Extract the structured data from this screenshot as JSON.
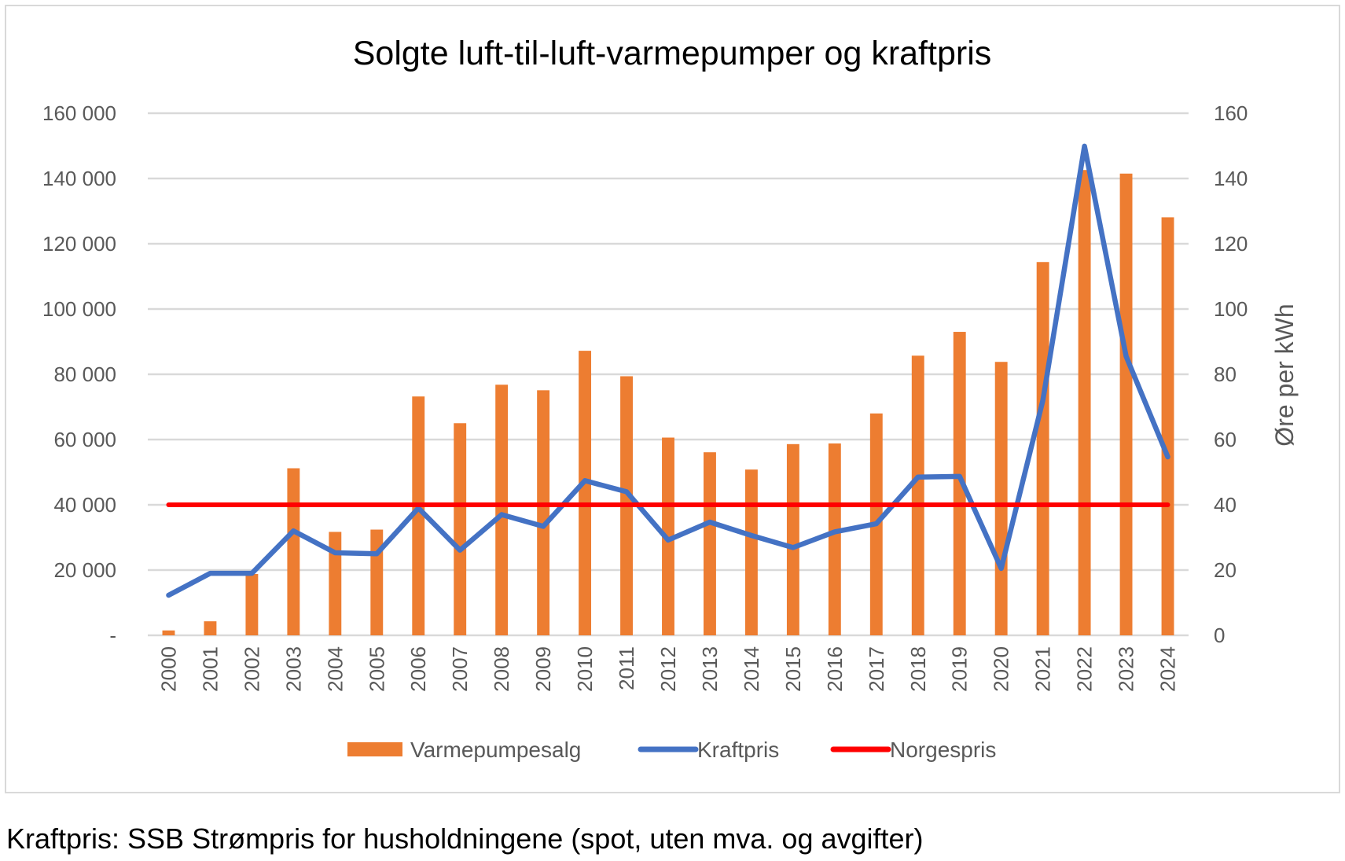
{
  "chart_data": {
    "type": "bar+line",
    "title": "Solgte luft-til-luft-varmepumper og kraftpris",
    "xlabel": "",
    "ylabel_left": "",
    "ylabel_right": "Øre per kWh",
    "categories": [
      "2000",
      "2001",
      "2002",
      "2003",
      "2004",
      "2005",
      "2006",
      "2007",
      "2008",
      "2009",
      "2010",
      "2011",
      "2012",
      "2013",
      "2014",
      "2015",
      "2016",
      "2017",
      "2018",
      "2019",
      "2020",
      "2021",
      "2022",
      "2023",
      "2024"
    ],
    "ylim_left": [
      0,
      160000
    ],
    "ylim_right": [
      0,
      160
    ],
    "left_ticks": [
      "-",
      "20 000",
      "40 000",
      "60 000",
      "80 000",
      "100 000",
      "120 000",
      "140 000",
      "160 000"
    ],
    "right_ticks": [
      "0",
      "20",
      "40",
      "60",
      "80",
      "100",
      "120",
      "140",
      "160"
    ],
    "grid": true,
    "legend_position": "bottom",
    "series": [
      {
        "name": "Varmepumpesalg",
        "type": "bar",
        "axis": "left",
        "color": "#ED7D31",
        "values": [
          1500,
          4300,
          18800,
          51200,
          31700,
          32400,
          73200,
          65000,
          76800,
          75100,
          87200,
          79400,
          60600,
          56100,
          50800,
          58600,
          58800,
          68000,
          85700,
          93000,
          83800,
          114400,
          142600,
          141500,
          128100
        ]
      },
      {
        "name": "Kraftpris",
        "type": "line",
        "axis": "right",
        "color": "#4472C4",
        "values": [
          12.3,
          19.0,
          19.0,
          32.0,
          25.3,
          25.0,
          39.0,
          26.1,
          37.0,
          33.4,
          47.4,
          44.0,
          29.2,
          34.7,
          30.6,
          26.9,
          31.7,
          34.2,
          48.5,
          48.7,
          20.5,
          72.0,
          149.9,
          85.5,
          54.7
        ]
      },
      {
        "name": "Norgespris",
        "type": "line",
        "axis": "right",
        "color": "#FF0000",
        "values": [
          40,
          40,
          40,
          40,
          40,
          40,
          40,
          40,
          40,
          40,
          40,
          40,
          40,
          40,
          40,
          40,
          40,
          40,
          40,
          40,
          40,
          40,
          40,
          40,
          40
        ]
      }
    ]
  },
  "footnote": "Kraftpris: SSB Strømpris for husholdningene (spot, uten mva. og avgifter)"
}
